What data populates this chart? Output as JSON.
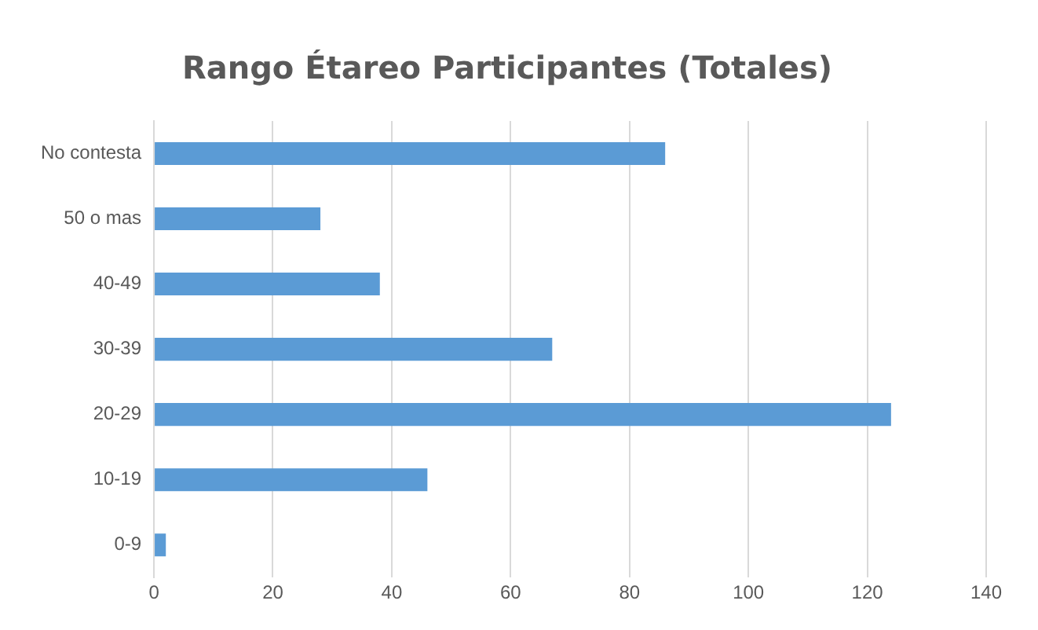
{
  "chart_data": {
    "type": "bar",
    "orientation": "horizontal",
    "title": "Rango Étareo Participantes (Totales)",
    "categories": [
      "No contesta",
      "50 o mas",
      "40-49",
      "30-39",
      "20-29",
      "10-19",
      "0-9"
    ],
    "values": [
      86,
      28,
      38,
      67,
      124,
      46,
      2
    ],
    "color": "#5b9bd5",
    "xlim": [
      0,
      140
    ],
    "xticks": [
      0,
      20,
      40,
      60,
      80,
      100,
      120,
      140
    ],
    "grid": "x",
    "legend": false
  }
}
